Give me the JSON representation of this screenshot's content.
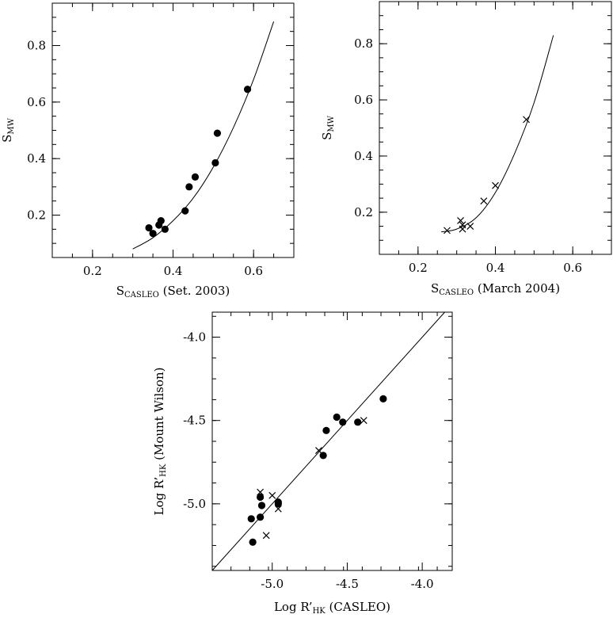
{
  "chart_data": [
    {
      "type": "scatter",
      "xlabel": {
        "main": "S",
        "sub": "CASLEO",
        "after": " (Set. 2003)"
      },
      "ylabel": {
        "main": "S",
        "sub": "MW"
      },
      "xlim": [
        0.1,
        0.7
      ],
      "ylim": [
        0.05,
        0.95
      ],
      "xticks": [
        "0.2",
        "0.4",
        "0.6"
      ],
      "yticks": [
        "0.2",
        "0.4",
        "0.6",
        "0.8"
      ],
      "marker": "filled-circle",
      "points": [
        [
          0.34,
          0.155
        ],
        [
          0.35,
          0.135
        ],
        [
          0.365,
          0.165
        ],
        [
          0.37,
          0.18
        ],
        [
          0.38,
          0.15
        ],
        [
          0.43,
          0.215
        ],
        [
          0.44,
          0.3
        ],
        [
          0.455,
          0.335
        ],
        [
          0.505,
          0.385
        ],
        [
          0.51,
          0.49
        ],
        [
          0.585,
          0.645
        ]
      ],
      "fit_curve": [
        [
          0.3,
          0.08
        ],
        [
          0.35,
          0.12
        ],
        [
          0.4,
          0.18
        ],
        [
          0.45,
          0.26
        ],
        [
          0.5,
          0.37
        ],
        [
          0.55,
          0.51
        ],
        [
          0.6,
          0.68
        ],
        [
          0.65,
          0.885
        ]
      ]
    },
    {
      "type": "scatter",
      "xlabel": {
        "main": "S",
        "sub": "CASLEO",
        "after": " (March 2004)"
      },
      "ylabel": {
        "main": "S",
        "sub": "MW"
      },
      "xlim": [
        0.1,
        0.7
      ],
      "ylim": [
        0.05,
        0.95
      ],
      "xticks": [
        "0.2",
        "0.4",
        "0.6"
      ],
      "yticks": [
        "0.2",
        "0.4",
        "0.6",
        "0.8"
      ],
      "marker": "cross",
      "points": [
        [
          0.275,
          0.135
        ],
        [
          0.31,
          0.17
        ],
        [
          0.315,
          0.155
        ],
        [
          0.315,
          0.14
        ],
        [
          0.335,
          0.15
        ],
        [
          0.37,
          0.24
        ],
        [
          0.4,
          0.295
        ],
        [
          0.48,
          0.53
        ]
      ],
      "fit_curve": [
        [
          0.26,
          0.13
        ],
        [
          0.3,
          0.14
        ],
        [
          0.35,
          0.18
        ],
        [
          0.4,
          0.27
        ],
        [
          0.45,
          0.41
        ],
        [
          0.5,
          0.59
        ],
        [
          0.55,
          0.83
        ]
      ]
    },
    {
      "type": "scatter",
      "xlabel": {
        "main": "Log R’",
        "sub": "HK",
        "after": " (CASLEO)"
      },
      "ylabel": {
        "main": "Log R’",
        "sub": "HK",
        "after": " (Mount Wilson)"
      },
      "xlim": [
        -5.4,
        -3.8
      ],
      "ylim": [
        -5.4,
        -3.85
      ],
      "xticks": [
        "-5.0",
        "-4.5",
        "-4.0"
      ],
      "yticks": [
        "-5.0",
        "-4.5",
        "-4.0"
      ],
      "identity_line": [
        [
          -5.4,
          -5.4
        ],
        [
          -3.85,
          -3.85
        ]
      ],
      "series": [
        {
          "marker": "filled-circle",
          "points": [
            [
              -4.26,
              -4.37
            ],
            [
              -4.43,
              -4.51
            ],
            [
              -4.53,
              -4.51
            ],
            [
              -4.57,
              -4.48
            ],
            [
              -4.64,
              -4.56
            ],
            [
              -4.66,
              -4.71
            ],
            [
              -4.96,
              -4.99
            ],
            [
              -4.96,
              -5.0
            ],
            [
              -5.08,
              -4.96
            ],
            [
              -5.07,
              -5.01
            ],
            [
              -5.08,
              -5.08
            ],
            [
              -5.14,
              -5.09
            ],
            [
              -5.13,
              -5.23
            ]
          ]
        },
        {
          "marker": "cross",
          "points": [
            [
              -4.39,
              -4.5
            ],
            [
              -4.69,
              -4.68
            ],
            [
              -5.08,
              -4.93
            ],
            [
              -5.0,
              -4.95
            ],
            [
              -4.96,
              -5.03
            ],
            [
              -5.04,
              -5.19
            ]
          ]
        }
      ]
    }
  ]
}
